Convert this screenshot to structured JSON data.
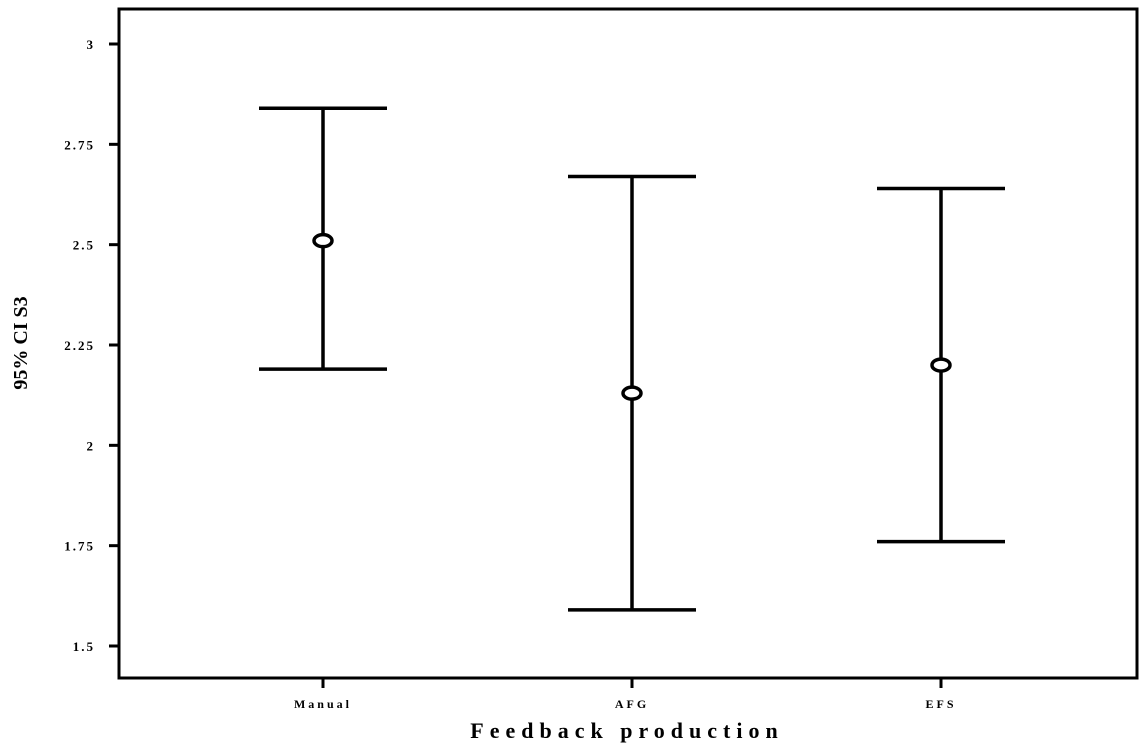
{
  "chart_data": {
    "type": "errorbar",
    "title": "",
    "xlabel": "Feedback production",
    "ylabel": "95% CI S3",
    "ylim": [
      1.42,
      3.1
    ],
    "yticks": [
      1.5,
      1.75,
      2,
      2.25,
      2.5,
      2.75,
      3
    ],
    "ytick_labels": [
      "1.5",
      "1.75",
      "2",
      "2.25",
      "2.5",
      "2.75",
      "3"
    ],
    "categories": [
      "Manual",
      "AFG",
      "EFS"
    ],
    "points": [
      {
        "category": "Manual",
        "mean": 2.51,
        "lower": 2.19,
        "upper": 2.84
      },
      {
        "category": "AFG",
        "mean": 2.13,
        "lower": 1.59,
        "upper": 2.67
      },
      {
        "category": "EFS",
        "mean": 2.2,
        "lower": 1.76,
        "upper": 2.64
      }
    ],
    "grid": false,
    "legend": "none"
  }
}
